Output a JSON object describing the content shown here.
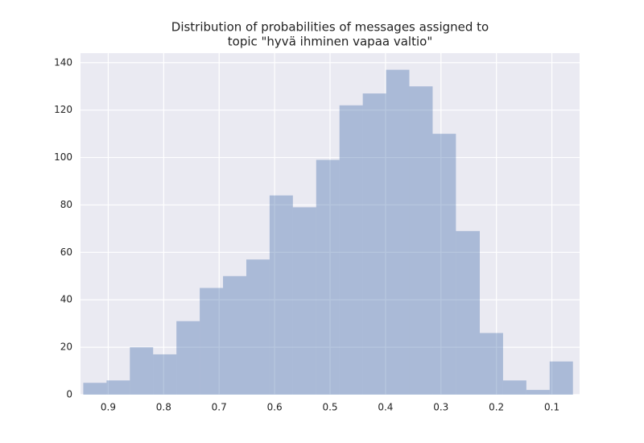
{
  "chart_data": {
    "type": "histogram",
    "title": [
      "Distribution of probabilities of messages assigned to",
      "topic \"hyvä ihminen vapaa valtio\""
    ],
    "bins": [
      0.062,
      0.104,
      0.146,
      0.188,
      0.23,
      0.273,
      0.315,
      0.357,
      0.399,
      0.441,
      0.483,
      0.525,
      0.567,
      0.609,
      0.651,
      0.693,
      0.735,
      0.777,
      0.819,
      0.861,
      0.903,
      0.945
    ],
    "counts": [
      14,
      2,
      6,
      26,
      69,
      110,
      130,
      137,
      127,
      122,
      99,
      79,
      84,
      57,
      50,
      45,
      31,
      17,
      20,
      6,
      5
    ],
    "color": "#4c72b0",
    "xlim": [
      0.95,
      0.05
    ],
    "xticks": [
      0.9,
      0.8,
      0.7,
      0.6,
      0.5,
      0.4,
      0.3,
      0.2,
      0.1
    ],
    "ylim": [
      0,
      144
    ],
    "yticks": [
      0,
      20,
      40,
      60,
      80,
      100,
      120,
      140
    ],
    "grid": true
  }
}
